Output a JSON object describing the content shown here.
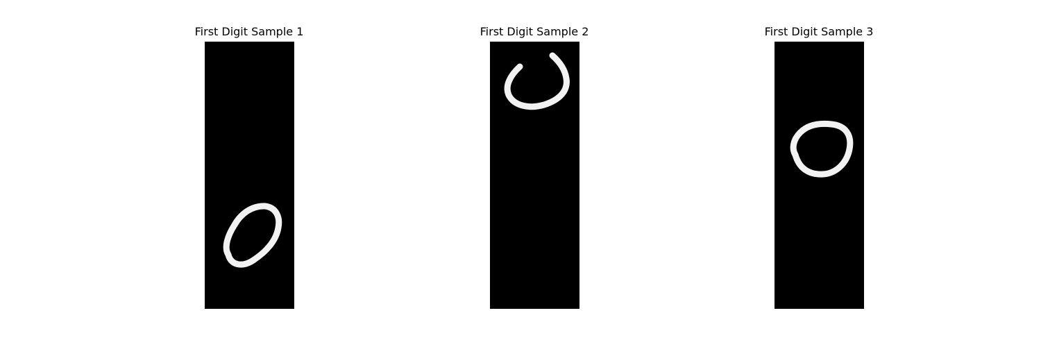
{
  "panels": [
    {
      "title": "First Digit Sample 1",
      "digit": "0"
    },
    {
      "title": "First Digit Sample 2",
      "digit": "0"
    },
    {
      "title": "First Digit Sample 3",
      "digit": "0"
    }
  ],
  "colors": {
    "background": "#ffffff",
    "image_background": "#000000",
    "stroke": "#f2f2f2"
  }
}
